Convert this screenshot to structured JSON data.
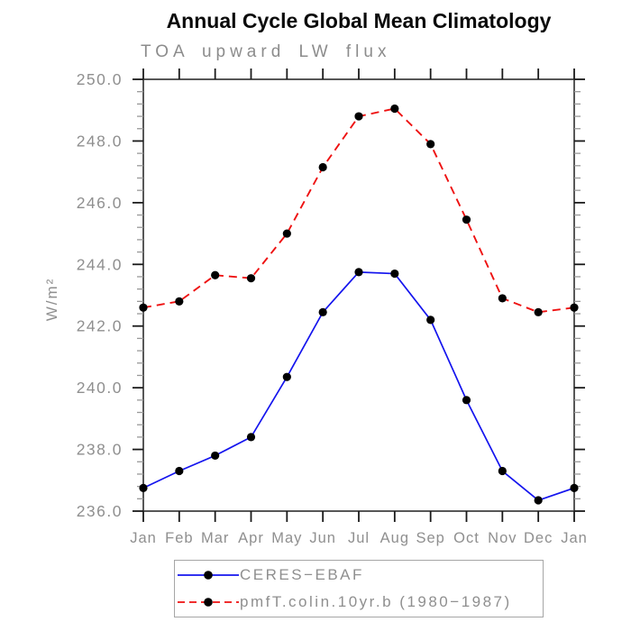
{
  "title": "Annual Cycle Global Mean Climatology",
  "subtitle": "TOA upward LW flux",
  "colors": {
    "axis_frame": "#3a3a3a",
    "tick_major": "#1a1a1a",
    "tick_minor": "#999999",
    "label_gray": "#8f8f8f",
    "title_black": "#0a0a0a",
    "legend_border": "#a6a6a6",
    "marker_black": "#000000",
    "ceres_blue": "#1414ee",
    "model_red": "#ee1111"
  },
  "legend": {
    "items": [
      {
        "label": "CERES−EBAF"
      },
      {
        "label": "pmfT.colin.10yr.b (1980−1987)"
      }
    ]
  },
  "chart_data": {
    "type": "line",
    "title": "Annual Cycle Global Mean Climatology",
    "subtitle": "TOA upward LW flux",
    "xlabel": "",
    "ylabel": "W/m²",
    "categories": [
      "Jan",
      "Feb",
      "Mar",
      "Apr",
      "May",
      "Jun",
      "Jul",
      "Aug",
      "Sep",
      "Oct",
      "Nov",
      "Dec",
      "Jan"
    ],
    "ylim": [
      236.0,
      250.0
    ],
    "ytick_major": 2.0,
    "ytick_minor": 0.4,
    "ytick_labels": [
      "236.0",
      "238.0",
      "240.0",
      "242.0",
      "244.0",
      "246.0",
      "248.0",
      "250.0"
    ],
    "grid": false,
    "legend_position": "bottom",
    "marker": "filled-circle",
    "marker_color": "#000000",
    "series": [
      {
        "name": "CERES−EBAF",
        "color": "#1414ee",
        "style": "solid",
        "values": [
          236.75,
          237.3,
          237.8,
          238.4,
          240.35,
          242.45,
          243.75,
          243.7,
          242.2,
          239.6,
          237.3,
          236.35,
          236.75
        ]
      },
      {
        "name": "pmfT.colin.10yr.b (1980−1987)",
        "color": "#ee1111",
        "style": "dashed",
        "values": [
          242.6,
          242.8,
          243.65,
          243.55,
          245.0,
          247.15,
          248.8,
          249.05,
          247.9,
          245.45,
          242.9,
          242.45,
          242.6
        ]
      }
    ]
  }
}
